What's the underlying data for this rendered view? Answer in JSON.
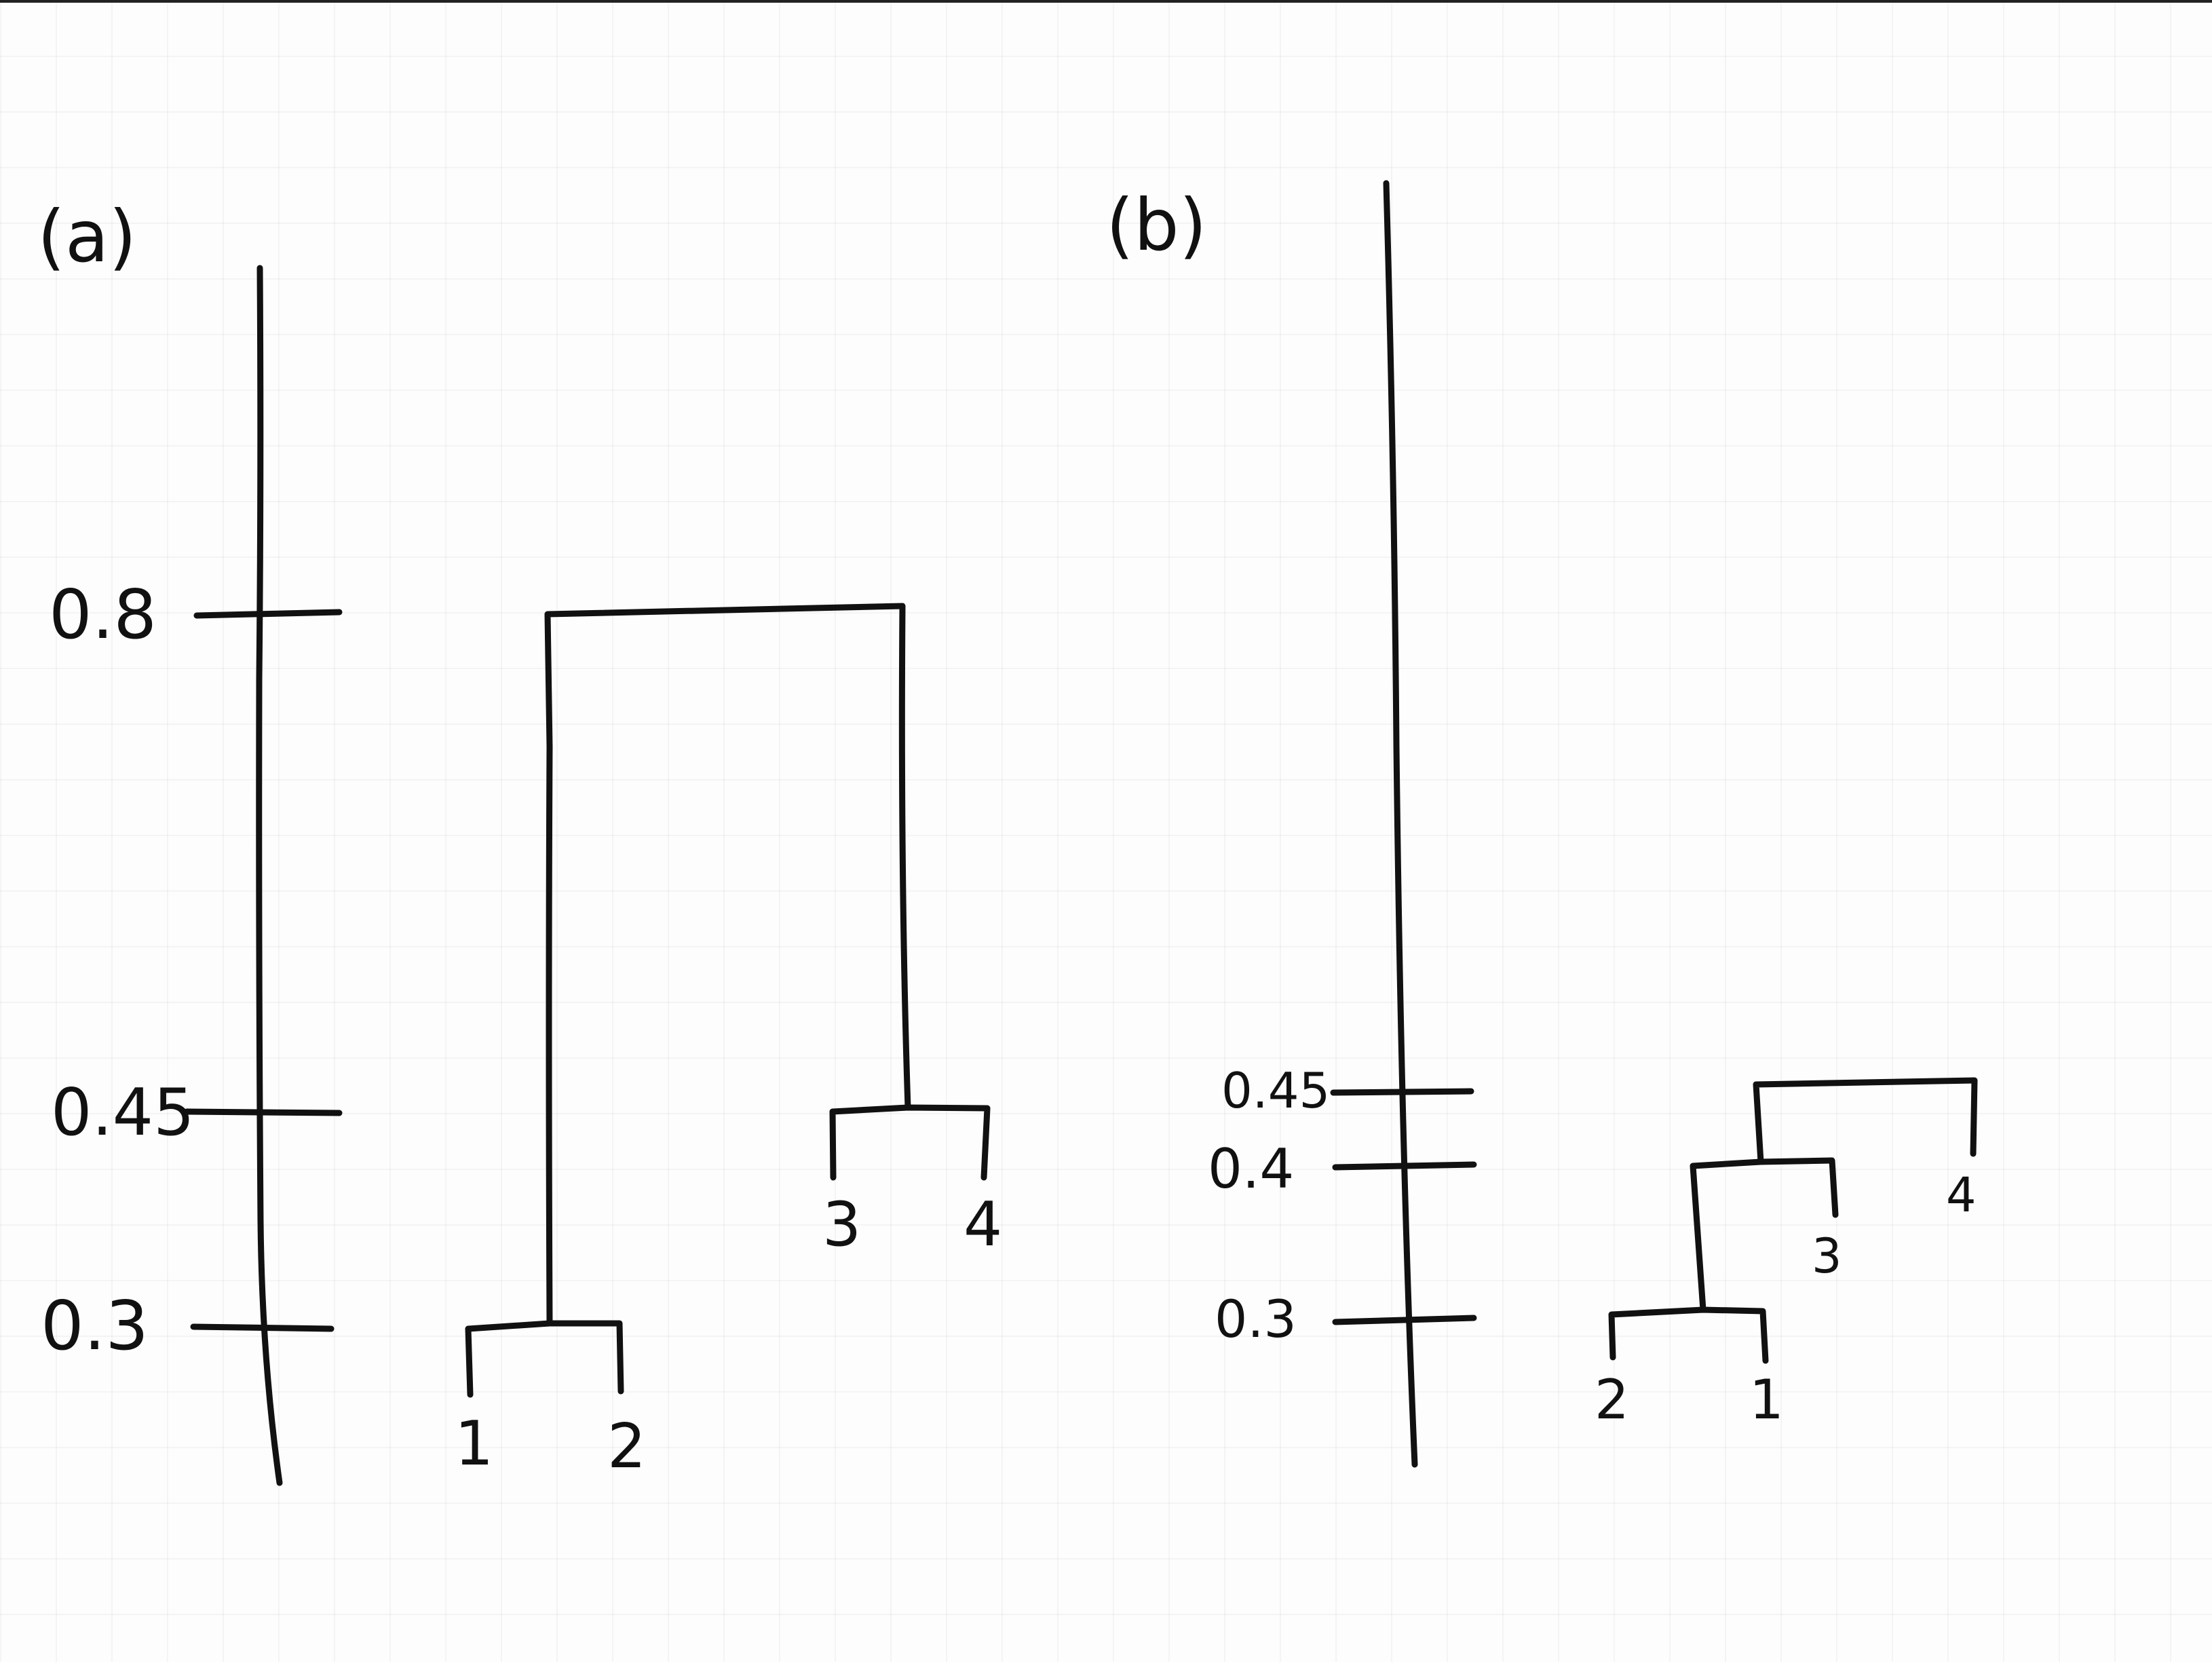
{
  "panels": [
    {
      "id": "a",
      "label": "(a)",
      "ticks": [
        "0.8",
        "0.45",
        "0.3"
      ],
      "leaves": [
        "1",
        "2",
        "3",
        "4"
      ],
      "merges": [
        {
          "height": 0.3,
          "members": [
            "1",
            "2"
          ]
        },
        {
          "height": 0.45,
          "members": [
            "3",
            "4"
          ]
        },
        {
          "height": 0.8,
          "members": [
            "1",
            "2",
            "3",
            "4"
          ]
        }
      ]
    },
    {
      "id": "b",
      "label": "(b)",
      "ticks": [
        "0.45",
        "0.4",
        "0.3"
      ],
      "leaves": [
        "2",
        "1",
        "3",
        "4"
      ],
      "merges": [
        {
          "height": 0.3,
          "members": [
            "1",
            "2"
          ]
        },
        {
          "height": 0.4,
          "members": [
            "1",
            "2",
            "3"
          ]
        },
        {
          "height": 0.45,
          "members": [
            "1",
            "2",
            "3",
            "4"
          ]
        }
      ]
    }
  ]
}
